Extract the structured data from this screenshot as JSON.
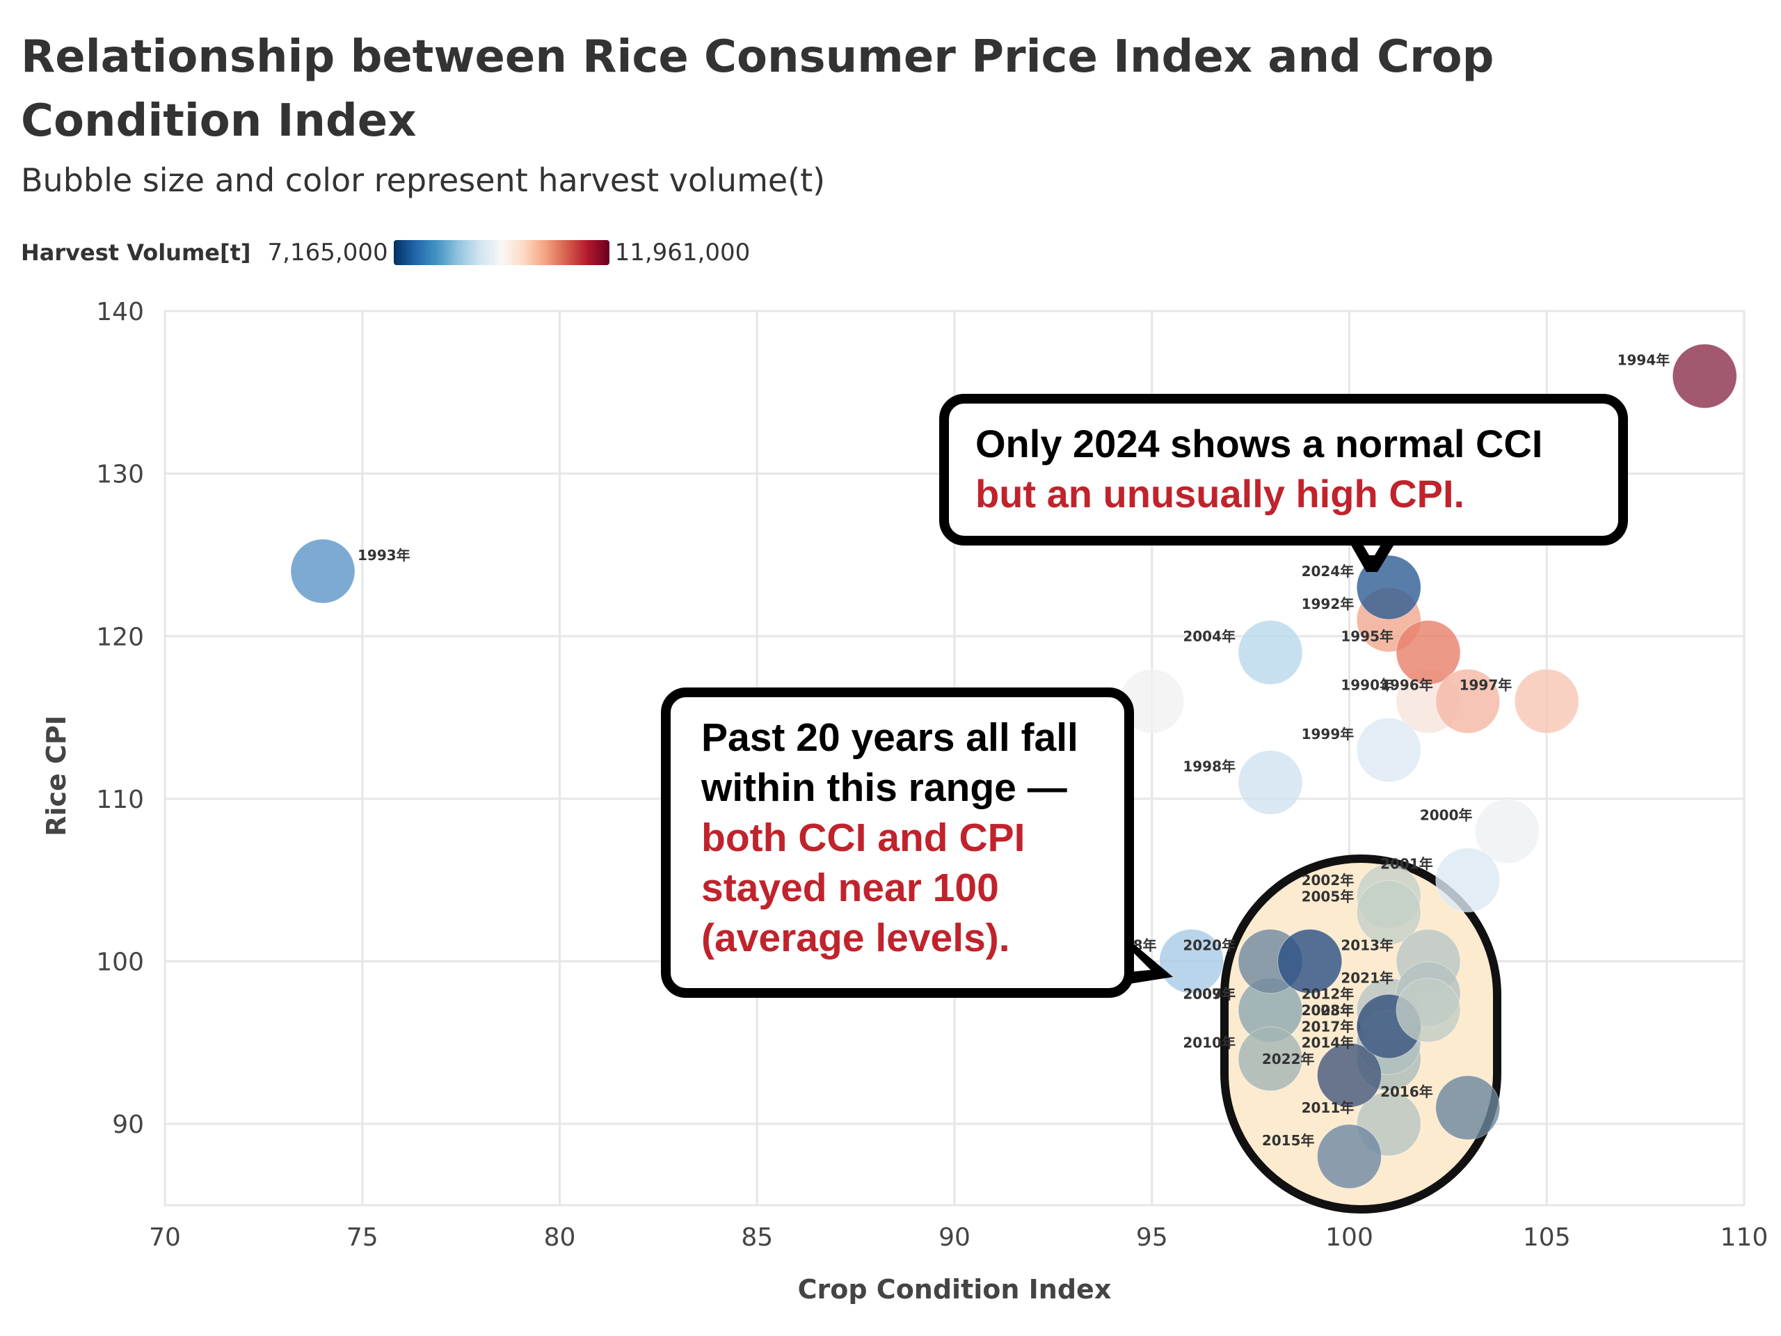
{
  "title": "Relationship between Rice Consumer Price Index and Crop Condition Index",
  "subtitle": "Bubble size and color represent harvest volume(t)",
  "legend": {
    "title": "Harvest Volume[t]",
    "min_label": "7,165,000",
    "max_label": "11,961,000"
  },
  "callouts": {
    "top": {
      "line1": "Only 2024 shows a normal CCI",
      "line2": "but an unusually high CPI."
    },
    "left": {
      "line1": "Past 20 years all fall",
      "line2": "within this range —",
      "line3": "both CCI and CPI",
      "line4": "stayed near 100",
      "line5": "(average levels)."
    }
  },
  "colors": {
    "highlight_fill": "#fdebd0",
    "callout_red": "#c0232c",
    "grid": "#e6e6e6"
  },
  "chart_data": {
    "type": "scatter",
    "title": "Relationship between Rice Consumer Price Index and Crop Condition Index",
    "subtitle": "Bubble size and color represent harvest volume(t)",
    "xlabel": "Crop Condition Index",
    "ylabel": "Rice CPI",
    "xlim": [
      70,
      110
    ],
    "ylim": [
      85,
      140
    ],
    "xticks": [
      70,
      75,
      80,
      85,
      90,
      95,
      100,
      105,
      110
    ],
    "yticks": [
      90,
      100,
      110,
      120,
      130,
      140
    ],
    "grid": true,
    "color_scale": {
      "name": "Harvest Volume[t]",
      "min": 7165000,
      "max": 11961000,
      "low_color": "#053061",
      "high_color": "#67001f"
    },
    "points": [
      {
        "label": "1990年",
        "x": 102,
        "y": 116,
        "color": "#f7e4dc"
      },
      {
        "label": "1992年",
        "x": 101,
        "y": 121,
        "color": "#f0a88e"
      },
      {
        "label": "1993年",
        "x": 74,
        "y": 124,
        "color": "#5d95c8"
      },
      {
        "label": "1994年",
        "x": 109,
        "y": 136,
        "color": "#8b2e4a"
      },
      {
        "label": "1995年",
        "x": 102,
        "y": 119,
        "color": "#e8806a"
      },
      {
        "label": "1996年",
        "x": 103,
        "y": 116,
        "color": "#f4b7a2"
      },
      {
        "label": "1997年",
        "x": 105,
        "y": 116,
        "color": "#f8c6b4"
      },
      {
        "label": "1998年",
        "x": 98,
        "y": 111,
        "color": "#cfe2f0"
      },
      {
        "label": "1999年",
        "x": 101,
        "y": 113,
        "color": "#dde9f3"
      },
      {
        "label": "2000年",
        "x": 104,
        "y": 108,
        "color": "#eef0f2"
      },
      {
        "label": "2001年",
        "x": 103,
        "y": 105,
        "color": "#dce8f2"
      },
      {
        "label": "2002年",
        "x": 101,
        "y": 104,
        "color": "#c5d1c8"
      },
      {
        "label": "2004年",
        "x": 98,
        "y": 119,
        "color": "#b9d8ec"
      },
      {
        "label": "2005年",
        "x": 101,
        "y": 103,
        "color": "#c3cfc6"
      },
      {
        "label": "2007年",
        "x": 98,
        "y": 97,
        "color": "#a7b9bb"
      },
      {
        "label": "2008年",
        "x": 101,
        "y": 96,
        "color": "#2e4a78"
      },
      {
        "label": "2009年",
        "x": 98,
        "y": 97,
        "color": "#9fb2b4"
      },
      {
        "label": "2010年",
        "x": 98,
        "y": 94,
        "color": "#a4b5b5"
      },
      {
        "label": "2011年",
        "x": 101,
        "y": 90,
        "color": "#b6c5c2"
      },
      {
        "label": "2012年",
        "x": 101,
        "y": 97,
        "color": "#b7c6c3"
      },
      {
        "label": "2013年",
        "x": 102,
        "y": 100,
        "color": "#b8c7c4"
      },
      {
        "label": "2014年",
        "x": 101,
        "y": 94,
        "color": "#adbcba"
      },
      {
        "label": "2015年",
        "x": 100,
        "y": 88,
        "color": "#6e8aa3"
      },
      {
        "label": "2016年",
        "x": 103,
        "y": 91,
        "color": "#6c879c"
      },
      {
        "label": "2017年",
        "x": 101,
        "y": 95,
        "color": "#aebfbd"
      },
      {
        "label": "2018年",
        "x": 96,
        "y": 100,
        "color": "#a8cbe6"
      },
      {
        "label": "2020年",
        "x": 98,
        "y": 100,
        "color": "#6f889e"
      },
      {
        "label": "2021年",
        "x": 102,
        "y": 98,
        "color": "#b3c2bf"
      },
      {
        "label": "2022年",
        "x": 100,
        "y": 93,
        "color": "#43577a"
      },
      {
        "label": "2023年",
        "x": 101,
        "y": 96,
        "color": "#3b5680"
      },
      {
        "label": "2024年",
        "x": 101,
        "y": 123,
        "color": "#2d5c92"
      },
      {
        "label": "",
        "x": 95,
        "y": 116,
        "color": "#f1f1f1"
      },
      {
        "label": "",
        "x": 99,
        "y": 100,
        "color": "#2a4f85"
      },
      {
        "label": "",
        "x": 102,
        "y": 97,
        "color": "#c2cdc6"
      }
    ]
  }
}
